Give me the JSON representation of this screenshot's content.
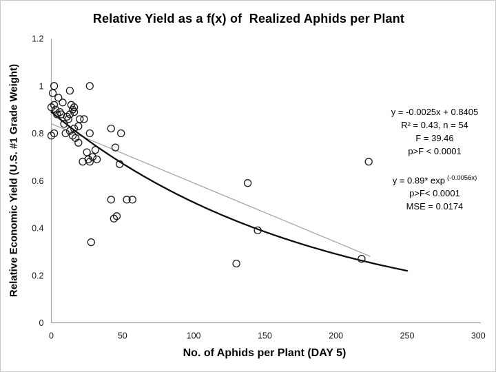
{
  "page": {
    "background": "#ffffff",
    "border_color": "#c9c9c9"
  },
  "chart_data": {
    "type": "scatter",
    "title": "Relative Yield as a f(x) of  Realized Aphids per Plant",
    "xlabel": "No. of Aphids per Plant (DAY 5)",
    "ylabel": "Relative Economic Yield (U.S. #1 Grade Weight)",
    "xlim": [
      0,
      300
    ],
    "ylim": [
      0,
      1.2
    ],
    "x_ticks": [
      "0",
      "50",
      "100",
      "150",
      "200",
      "250",
      "300"
    ],
    "y_ticks": [
      "0",
      "0.2",
      "0.4",
      "0.6",
      "0.8",
      "1",
      "1.2"
    ],
    "grid": false,
    "legend": "none",
    "axis_color": "#a6a6a6",
    "tick_label_color": "#1a1a1a",
    "marker": {
      "shape": "open-circle",
      "radius": 5,
      "color": "#1a1a1a",
      "stroke_width": 1.3
    },
    "n": 54,
    "points": [
      [
        2,
        1.0
      ],
      [
        1,
        0.97
      ],
      [
        13,
        0.98
      ],
      [
        27,
        1.0
      ],
      [
        5,
        0.95
      ],
      [
        8,
        0.93
      ],
      [
        2,
        0.92
      ],
      [
        0,
        0.91
      ],
      [
        3,
        0.9
      ],
      [
        6,
        0.89
      ],
      [
        7,
        0.88
      ],
      [
        4,
        0.88
      ],
      [
        14,
        0.92
      ],
      [
        15,
        0.9
      ],
      [
        16,
        0.91
      ],
      [
        16,
        0.89
      ],
      [
        13,
        0.88
      ],
      [
        11,
        0.87
      ],
      [
        12,
        0.86
      ],
      [
        20,
        0.86
      ],
      [
        23,
        0.86
      ],
      [
        9,
        0.84
      ],
      [
        19,
        0.83
      ],
      [
        16,
        0.82
      ],
      [
        13,
        0.81
      ],
      [
        2,
        0.8
      ],
      [
        0,
        0.79
      ],
      [
        10,
        0.8
      ],
      [
        15,
        0.79
      ],
      [
        17,
        0.78
      ],
      [
        27,
        0.8
      ],
      [
        19,
        0.76
      ],
      [
        42,
        0.82
      ],
      [
        49,
        0.8
      ],
      [
        45,
        0.74
      ],
      [
        25,
        0.72
      ],
      [
        31,
        0.73
      ],
      [
        22,
        0.68
      ],
      [
        26,
        0.69
      ],
      [
        29,
        0.7
      ],
      [
        32,
        0.69
      ],
      [
        27,
        0.68
      ],
      [
        48,
        0.67
      ],
      [
        42,
        0.52
      ],
      [
        53,
        0.52
      ],
      [
        57,
        0.52
      ],
      [
        46,
        0.45
      ],
      [
        44,
        0.44
      ],
      [
        28,
        0.34
      ],
      [
        138,
        0.59
      ],
      [
        145,
        0.39
      ],
      [
        130,
        0.25
      ],
      [
        223,
        0.68
      ],
      [
        218,
        0.27
      ]
    ],
    "fit_lines": [
      {
        "name": "linear-fit-line",
        "type": "linear",
        "slope": -0.0025,
        "intercept": 0.8405,
        "x_start": 0,
        "x_end": 224,
        "color": "#a6a6a6",
        "width": 1.3
      },
      {
        "name": "exponential-fit-curve",
        "type": "exponential",
        "a": 0.89,
        "b": -0.0056,
        "x_start": 0,
        "x_end": 250,
        "color": "#0d0d0d",
        "width": 2.3
      }
    ],
    "annotations": [
      {
        "lines": [
          "y = -0.0025x + 0.8405",
          "R² = 0.43, n = 54",
          "F = 39.46",
          "p>F < 0.0001"
        ]
      },
      {
        "line1_base": "y = 0.89* exp",
        "line1_sup": "(-0.0056x)",
        "lines": [
          "p>F< 0.0001",
          "MSE = 0.0174"
        ]
      }
    ]
  }
}
